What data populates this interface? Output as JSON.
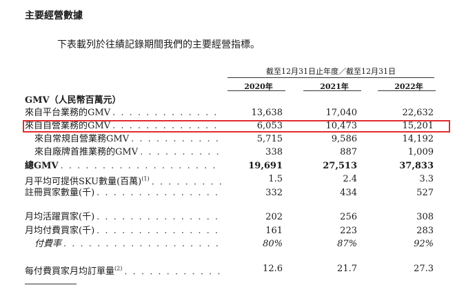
{
  "title": "主要經營數據",
  "intro": "下表載列於往績記錄期間我們的主要經營指標。",
  "period_header": "截至12月31日止年度／截至12月31日",
  "years": [
    "2020年",
    "2021年",
    "2022年"
  ],
  "section_heading": "GMV（人民幣百萬元）",
  "rows": [
    {
      "label": "來自平台業務的GMV",
      "values": [
        "13,638",
        "17,040",
        "22,632"
      ]
    },
    {
      "label": "來自自營業務的GMV",
      "values": [
        "6,053",
        "10,473",
        "15,201"
      ]
    },
    {
      "label": "來自常規自營業務GMV",
      "values": [
        "5,715",
        "9,586",
        "14,192"
      ]
    },
    {
      "label": "來自廠牌首推業務的GMV",
      "values": [
        "338",
        "887",
        "1,009"
      ]
    },
    {
      "label": "總GMV",
      "values": [
        "19,691",
        "27,513",
        "37,833"
      ]
    },
    {
      "label": "月平均可提供SKU數量(百萬)",
      "footnote": "(1)",
      "values": [
        "1.5",
        "2.4",
        "3.3"
      ]
    },
    {
      "label": "註冊買家數量(千)",
      "values": [
        "332",
        "434",
        "527"
      ]
    },
    {
      "label": "月均活躍買家(千)",
      "values": [
        "202",
        "256",
        "308"
      ]
    },
    {
      "label": "月均付費買家(千)",
      "values": [
        "161",
        "223",
        "283"
      ]
    },
    {
      "label": "付費率",
      "values": [
        "80%",
        "87%",
        "92%"
      ]
    },
    {
      "label": "每付費買家月均訂單量",
      "footnote": "(2)",
      "values": [
        "12.6",
        "21.7",
        "27.3"
      ]
    }
  ],
  "dots": ". . . . . . . . . . . . . . . . . . . . . . . . . . . . . . . . . . . . . . . . . .",
  "highlight_color": "#e32b2b"
}
